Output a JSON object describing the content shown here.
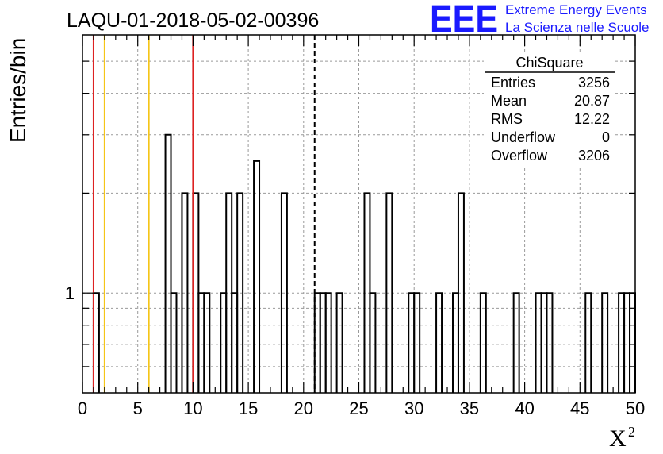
{
  "chart_data": {
    "type": "bar",
    "title": "LAQU-01-2018-05-02-00396",
    "xlabel": "X",
    "xlabel_sup": "2",
    "ylabel": "Entries/bin",
    "xlim": [
      0,
      50
    ],
    "ylim": [
      0.5,
      6
    ],
    "y_log_scale": true,
    "grid": true,
    "x_ticks": [
      0,
      5,
      10,
      15,
      20,
      25,
      30,
      35,
      40,
      45,
      50
    ],
    "y_ticks": [
      1
    ],
    "bin_width": 0.5,
    "bins": [
      {
        "x": 1.0,
        "y": 1
      },
      {
        "x": 7.5,
        "y": 3
      },
      {
        "x": 8.0,
        "y": 1
      },
      {
        "x": 9.0,
        "y": 2
      },
      {
        "x": 10.0,
        "y": 2
      },
      {
        "x": 10.5,
        "y": 1
      },
      {
        "x": 11.0,
        "y": 1
      },
      {
        "x": 12.5,
        "y": 1
      },
      {
        "x": 13.0,
        "y": 2
      },
      {
        "x": 13.5,
        "y": 1
      },
      {
        "x": 14.0,
        "y": 2
      },
      {
        "x": 15.5,
        "y": 2.5
      },
      {
        "x": 18.0,
        "y": 2
      },
      {
        "x": 21.0,
        "y": 1
      },
      {
        "x": 21.5,
        "y": 1
      },
      {
        "x": 22.0,
        "y": 1
      },
      {
        "x": 23.0,
        "y": 1
      },
      {
        "x": 25.5,
        "y": 2
      },
      {
        "x": 26.0,
        "y": 1
      },
      {
        "x": 27.5,
        "y": 2
      },
      {
        "x": 29.5,
        "y": 1
      },
      {
        "x": 30.0,
        "y": 1
      },
      {
        "x": 32.0,
        "y": 1
      },
      {
        "x": 33.5,
        "y": 1
      },
      {
        "x": 34.0,
        "y": 2
      },
      {
        "x": 36.0,
        "y": 1
      },
      {
        "x": 39.0,
        "y": 1
      },
      {
        "x": 41.0,
        "y": 1
      },
      {
        "x": 41.5,
        "y": 1
      },
      {
        "x": 42.0,
        "y": 1
      },
      {
        "x": 45.5,
        "y": 1
      },
      {
        "x": 47.0,
        "y": 1
      },
      {
        "x": 48.5,
        "y": 1
      },
      {
        "x": 49.0,
        "y": 1
      },
      {
        "x": 49.5,
        "y": 1
      }
    ],
    "vlines": [
      {
        "x": 1.0,
        "color": "#dd2222",
        "style": "solid"
      },
      {
        "x": 2.0,
        "color": "#f5c518",
        "style": "solid"
      },
      {
        "x": 6.0,
        "color": "#f5c518",
        "style": "solid"
      },
      {
        "x": 10.0,
        "color": "#dd2222",
        "style": "solid"
      },
      {
        "x": 21.0,
        "color": "#000000",
        "style": "dashed"
      }
    ],
    "stats_box": {
      "title": "ChiSquare",
      "rows": [
        {
          "label": "Entries",
          "value": "3256"
        },
        {
          "label": "Mean",
          "value": "20.87"
        },
        {
          "label": "RMS",
          "value": "12.22"
        },
        {
          "label": "Underflow",
          "value": "0"
        },
        {
          "label": "Overflow",
          "value": "3206"
        }
      ]
    }
  },
  "logo": {
    "letters": "EEE",
    "line1": "Extreme Energy Events",
    "line2": "La Scienza nelle Scuole",
    "color": "#1a1aff"
  }
}
